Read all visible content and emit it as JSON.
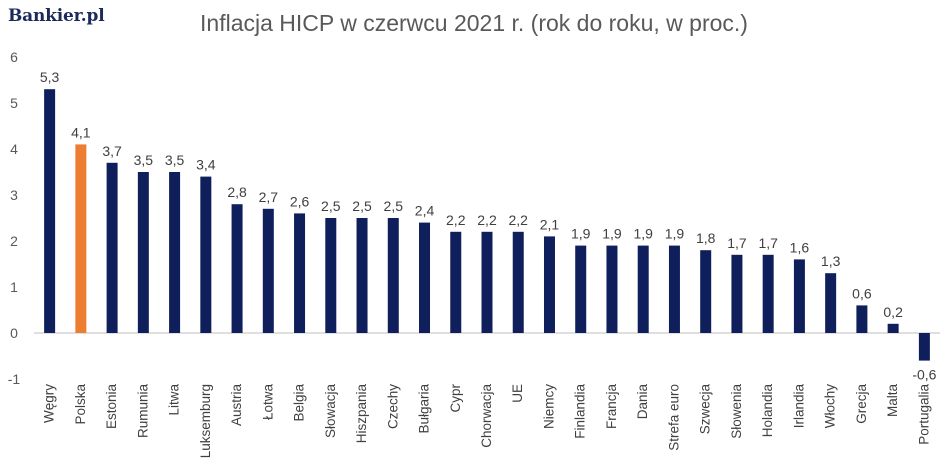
{
  "logo": {
    "text": "Bankier.pl"
  },
  "colors": {
    "bar_default": "#0f1f5c",
    "bar_highlight": "#ed7d31",
    "axis": "#bfbfbf",
    "text": "#595959"
  },
  "chart_data": {
    "type": "bar",
    "title": "Inflacja HICP w czerwcu 2021 r. (rok do roku, w proc.)",
    "xlabel": "",
    "ylabel": "",
    "ylim": [
      -1,
      6
    ],
    "yticks": [
      -1,
      0,
      1,
      2,
      3,
      4,
      5,
      6
    ],
    "grid": false,
    "highlight_category": "Polska",
    "categories": [
      "Węgry",
      "Polska",
      "Estonia",
      "Rumunia",
      "Litwa",
      "Luksemburg",
      "Austria",
      "Łotwa",
      "Belgia",
      "Słowacja",
      "Hiszpania",
      "Czechy",
      "Bułgaria",
      "Cypr",
      "Chorwacja",
      "UE",
      "Niemcy",
      "Finlandia",
      "Francja",
      "Dania",
      "Strefa euro",
      "Szwecja",
      "Słowenia",
      "Holandia",
      "Irlandia",
      "Włochy",
      "Grecja",
      "Malta",
      "Portugalia"
    ],
    "values": [
      5.3,
      4.1,
      3.7,
      3.5,
      3.5,
      3.4,
      2.8,
      2.7,
      2.6,
      2.5,
      2.5,
      2.5,
      2.4,
      2.2,
      2.2,
      2.2,
      2.1,
      1.9,
      1.9,
      1.9,
      1.9,
      1.8,
      1.7,
      1.7,
      1.6,
      1.3,
      0.6,
      0.2,
      -0.6
    ],
    "data_labels": [
      "5,3",
      "4,1",
      "3,7",
      "3,5",
      "3,5",
      "3,4",
      "2,8",
      "2,7",
      "2,6",
      "2,5",
      "2,5",
      "2,5",
      "2,4",
      "2,2",
      "2,2",
      "2,2",
      "2,1",
      "1,9",
      "1,9",
      "1,9",
      "1,9",
      "1,8",
      "1,7",
      "1,7",
      "1,6",
      "1,3",
      "0,6",
      "0,2",
      "-0,6"
    ]
  }
}
